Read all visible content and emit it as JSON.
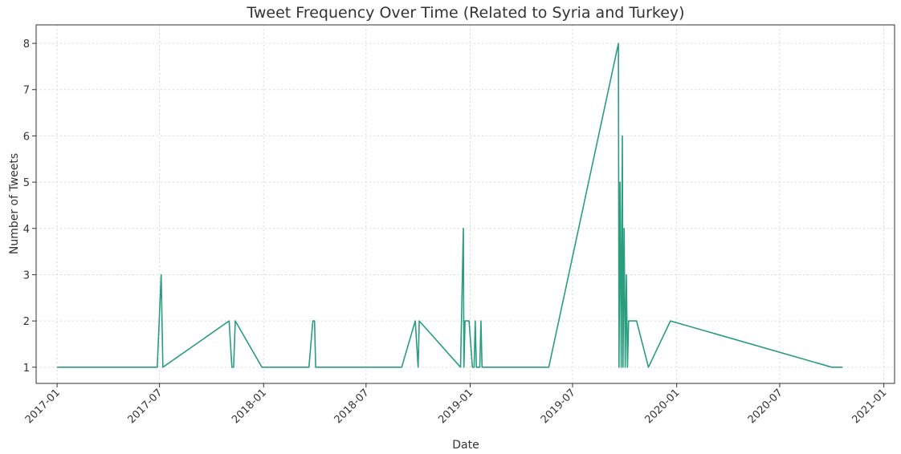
{
  "chart_data": {
    "type": "line",
    "title": "Tweet Frequency Over Time (Related to Syria and Turkey)",
    "xlabel": "Date",
    "ylabel": "Number of Tweets",
    "x_ticks": [
      "2017-01",
      "2017-07",
      "2018-01",
      "2018-07",
      "2019-01",
      "2019-07",
      "2020-01",
      "2020-07",
      "2021-01"
    ],
    "y_ticks": [
      1,
      2,
      3,
      4,
      5,
      6,
      7,
      8
    ],
    "xlim": [
      "2016-11-25",
      "2021-01-20"
    ],
    "ylim": [
      0.65,
      8.4
    ],
    "grid": true,
    "line_color": "#2a9d7f",
    "series": [
      {
        "x": [
          "2017-01-01",
          "2017-06-27",
          "2017-07-04",
          "2017-07-07",
          "2017-11-01",
          "2017-11-06",
          "2017-11-09",
          "2017-11-12",
          "2017-12-29",
          "2018-03-22",
          "2018-03-29",
          "2018-04-01",
          "2018-04-03",
          "2018-09-02",
          "2018-09-26",
          "2018-10-01",
          "2018-10-03",
          "2018-12-15",
          "2018-12-20",
          "2018-12-21",
          "2018-12-23",
          "2018-12-30",
          "2019-01-05",
          "2019-01-08",
          "2019-01-10",
          "2019-01-12",
          "2019-01-15",
          "2019-01-18",
          "2019-01-20",
          "2019-01-22",
          "2019-01-25",
          "2019-01-28",
          "2019-05-20",
          "2019-09-20",
          "2019-09-21",
          "2019-09-23",
          "2019-09-25",
          "2019-09-27",
          "2019-09-28",
          "2019-09-30",
          "2019-10-02",
          "2019-10-04",
          "2019-10-06",
          "2019-10-08",
          "2019-10-09",
          "2019-10-12",
          "2019-10-22",
          "2019-11-12",
          "2019-12-21",
          "2020-10-01",
          "2020-10-20"
        ],
        "y": [
          1,
          1,
          3,
          1,
          2,
          1,
          1,
          2,
          1,
          1,
          2,
          2,
          1,
          1,
          2,
          1,
          2,
          1,
          4,
          1,
          2,
          2,
          1,
          1,
          2,
          1,
          1,
          1,
          2,
          1,
          1,
          1,
          1,
          8,
          1,
          5,
          1,
          6,
          1,
          4,
          1,
          3,
          1,
          2,
          2,
          2,
          2,
          1,
          2,
          1,
          1
        ]
      }
    ]
  }
}
